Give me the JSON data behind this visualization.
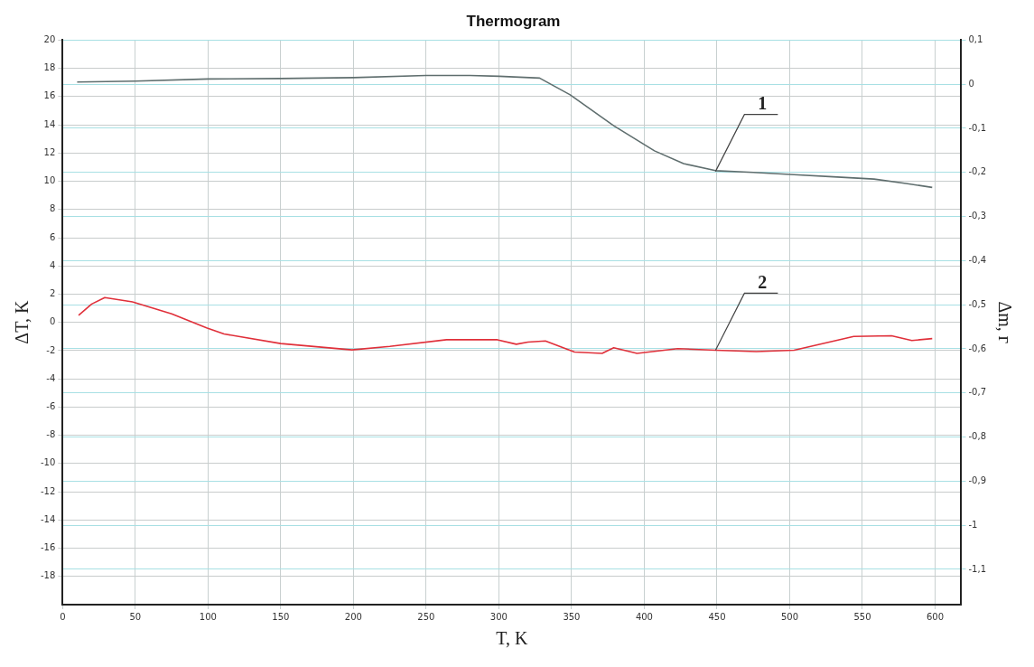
{
  "chart_data": {
    "type": "line",
    "title": "Thermogram",
    "xlabel": "T, K",
    "ylabel": "ΔT, K",
    "y2label": "Δm, г",
    "xlim": [
      0,
      618
    ],
    "xticks": [
      0,
      50,
      100,
      150,
      200,
      250,
      300,
      350,
      400,
      450,
      500,
      550,
      600
    ],
    "ylim": [
      -20,
      20
    ],
    "yticks": [
      -18,
      -16,
      -14,
      -12,
      -10,
      -8,
      -6,
      -4,
      -2,
      0,
      2,
      4,
      6,
      8,
      10,
      12,
      14,
      16,
      18,
      20
    ],
    "y2lim": [
      -1.18,
      0.1
    ],
    "y2ticks": [
      {
        "value": 0.1,
        "label": "0,1"
      },
      0,
      {
        "value": -0.1,
        "label": "-0,1"
      },
      {
        "value": -0.2,
        "label": "-0,2"
      },
      {
        "value": -0.3,
        "label": "-0,3"
      },
      {
        "value": -0.4,
        "label": "-0,4"
      },
      {
        "value": -0.5,
        "label": "-0,5"
      },
      {
        "value": -0.6,
        "label": "-0,6"
      },
      {
        "value": -0.7,
        "label": "-0,7"
      },
      {
        "value": -0.8,
        "label": "-0,8"
      },
      {
        "value": -0.9,
        "label": "-0,9"
      },
      -1,
      {
        "value": -1.1,
        "label": "-1,1"
      }
    ],
    "grid": true,
    "legend": false,
    "marker": "none",
    "line_style": "solid",
    "series": [
      {
        "color": "#5f6e6e",
        "axis": "y2",
        "x": [
          10,
          50,
          100,
          150,
          200,
          250,
          280,
          300,
          328,
          349,
          379,
          407,
          427,
          449,
          475,
          503,
          530,
          558,
          580,
          598
        ],
        "values": [
          0.005,
          0.007,
          0.012,
          0.013,
          0.015,
          0.02,
          0.02,
          0.018,
          0.014,
          -0.024,
          -0.094,
          -0.151,
          -0.18,
          -0.196,
          -0.2,
          -0.205,
          -0.21,
          -0.215,
          -0.225,
          -0.234
        ]
      },
      {
        "color": "#e0303a",
        "x": [
          11,
          20,
          29,
          48,
          75,
          99,
          111,
          150,
          199,
          225,
          264,
          299,
          312,
          320,
          332,
          352,
          371,
          379,
          395,
          423,
          449,
          477,
          503,
          544,
          570,
          584,
          598
        ],
        "values": [
          0.5,
          1.3,
          1.76,
          1.45,
          0.6,
          -0.38,
          -0.82,
          -1.5,
          -1.95,
          -1.7,
          -1.23,
          -1.23,
          -1.55,
          -1.4,
          -1.32,
          -2.1,
          -2.2,
          -1.8,
          -2.2,
          -1.86,
          -1.97,
          -2.07,
          -1.97,
          -1.0,
          -0.95,
          -1.28,
          -1.15
        ]
      }
    ],
    "annotations": [
      {
        "text": "1",
        "x": 449,
        "y": 10.7
      },
      {
        "text": "2",
        "x": 449,
        "y": -1.97
      }
    ]
  }
}
